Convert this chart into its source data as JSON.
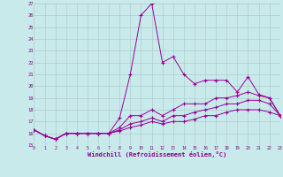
{
  "xlabel": "Windchill (Refroidissement éolien,°C)",
  "bg_color": "#c8eaea",
  "grid_color": "#b0cccc",
  "line_color": "#990099",
  "xmin": 0,
  "xmax": 23,
  "ymin": 15,
  "ymax": 27,
  "lines": [
    [
      16.3,
      15.8,
      15.5,
      16.0,
      16.0,
      16.0,
      16.0,
      16.0,
      17.3,
      21.0,
      26.0,
      27.0,
      22.0,
      22.5,
      21.0,
      20.2,
      20.5,
      20.5,
      20.5,
      19.5,
      20.8,
      19.3,
      19.0,
      17.5
    ],
    [
      16.3,
      15.8,
      15.5,
      16.0,
      16.0,
      16.0,
      16.0,
      16.0,
      16.5,
      17.5,
      17.5,
      18.0,
      17.5,
      18.0,
      18.5,
      18.5,
      18.5,
      19.0,
      19.0,
      19.2,
      19.5,
      19.2,
      19.0,
      17.5
    ],
    [
      16.3,
      15.8,
      15.5,
      16.0,
      16.0,
      16.0,
      16.0,
      16.0,
      16.3,
      16.8,
      17.0,
      17.3,
      17.0,
      17.5,
      17.5,
      17.8,
      18.0,
      18.2,
      18.5,
      18.5,
      18.8,
      18.8,
      18.5,
      17.5
    ],
    [
      16.3,
      15.8,
      15.5,
      16.0,
      16.0,
      16.0,
      16.0,
      16.0,
      16.2,
      16.5,
      16.7,
      17.0,
      16.8,
      17.0,
      17.0,
      17.2,
      17.5,
      17.5,
      17.8,
      18.0,
      18.0,
      18.0,
      17.8,
      17.5
    ]
  ]
}
